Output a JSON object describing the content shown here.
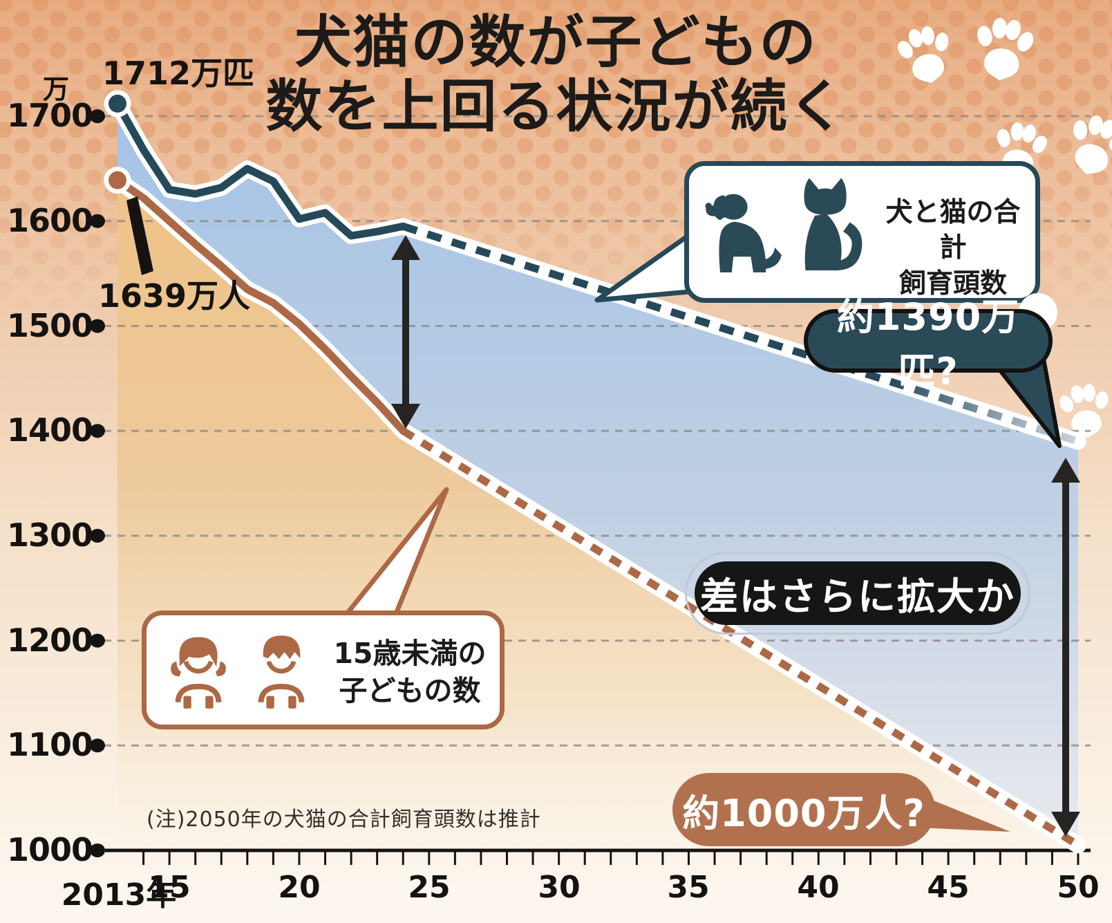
{
  "title": {
    "line1": "犬猫の数が子どもの",
    "line2": "数を上回る状況が続く"
  },
  "y_axis": {
    "unit": "万",
    "ticks": [
      1700,
      1600,
      1500,
      1400,
      1300,
      1200,
      1100,
      1000
    ]
  },
  "x_axis": {
    "origin_label": "2013年",
    "ticks": [
      {
        "year": 2015,
        "label": "15"
      },
      {
        "year": 2020,
        "label": "20"
      },
      {
        "year": 2025,
        "label": "25"
      },
      {
        "year": 2030,
        "label": "30"
      },
      {
        "year": 2035,
        "label": "35"
      },
      {
        "year": 2040,
        "label": "40"
      },
      {
        "year": 2045,
        "label": "45"
      },
      {
        "year": 2050,
        "label": "50"
      }
    ]
  },
  "chart_data": {
    "type": "line",
    "x_range": [
      2013,
      2050
    ],
    "y_range": [
      1000,
      1720
    ],
    "unit": "万",
    "note": "(注)2050年の犬猫の合計飼育頭数は推計",
    "grid": "dashed-horizontal",
    "series": [
      {
        "name": "犬と猫の合計飼育頭数",
        "color": "#26495a",
        "start_label": "1712万匹",
        "end_estimate_label": "約1390万匹?",
        "actual": {
          "years": [
            2013,
            2014,
            2015,
            2016,
            2017,
            2018,
            2019,
            2020,
            2021,
            2022,
            2023,
            2024
          ],
          "values": [
            1712,
            1668,
            1630,
            1626,
            1632,
            1650,
            1638,
            1602,
            1608,
            1586,
            1590,
            1595
          ]
        },
        "projected": {
          "years": [
            2024,
            2050
          ],
          "values": [
            1595,
            1390
          ]
        }
      },
      {
        "name": "15歳未満の子どもの数",
        "color": "#ad6845",
        "start_label": "1639万人",
        "end_estimate_label": "約1000万人?",
        "actual": {
          "years": [
            2013,
            2014,
            2015,
            2016,
            2017,
            2018,
            2019,
            2020,
            2021,
            2022,
            2023,
            2024
          ],
          "values": [
            1639,
            1622,
            1600,
            1578,
            1557,
            1535,
            1522,
            1502,
            1478,
            1452,
            1427,
            1400
          ]
        },
        "projected": {
          "years": [
            2024,
            2050
          ],
          "values": [
            1400,
            1005
          ]
        }
      }
    ]
  },
  "legend_boxes": {
    "pets": {
      "line1": "犬と猫の合計",
      "line2": "飼育頭数"
    },
    "children": {
      "line1": "15歳未満の",
      "line2": "子どもの数"
    }
  },
  "annotations": {
    "gap_pill": "差はさらに拡大か"
  },
  "colors": {
    "teal_line": "#26495a",
    "brown_line": "#ad6845",
    "blue_area_top": "#a4c3e6",
    "blue_area_bottom": "#e9eaee",
    "tan_area": "#efc287",
    "background_top": "#e7ab80",
    "background_bottom": "#fdf7f0",
    "arrow": "#262422",
    "bubble_teal": "#2b4a57",
    "bubble_brown": "#b2714e",
    "gap_pill_bg": "#161616"
  },
  "icons": {
    "pets": [
      "dog-icon",
      "cat-icon"
    ],
    "children": [
      "girl-icon",
      "boy-icon"
    ],
    "decoration": "paw-icon"
  }
}
